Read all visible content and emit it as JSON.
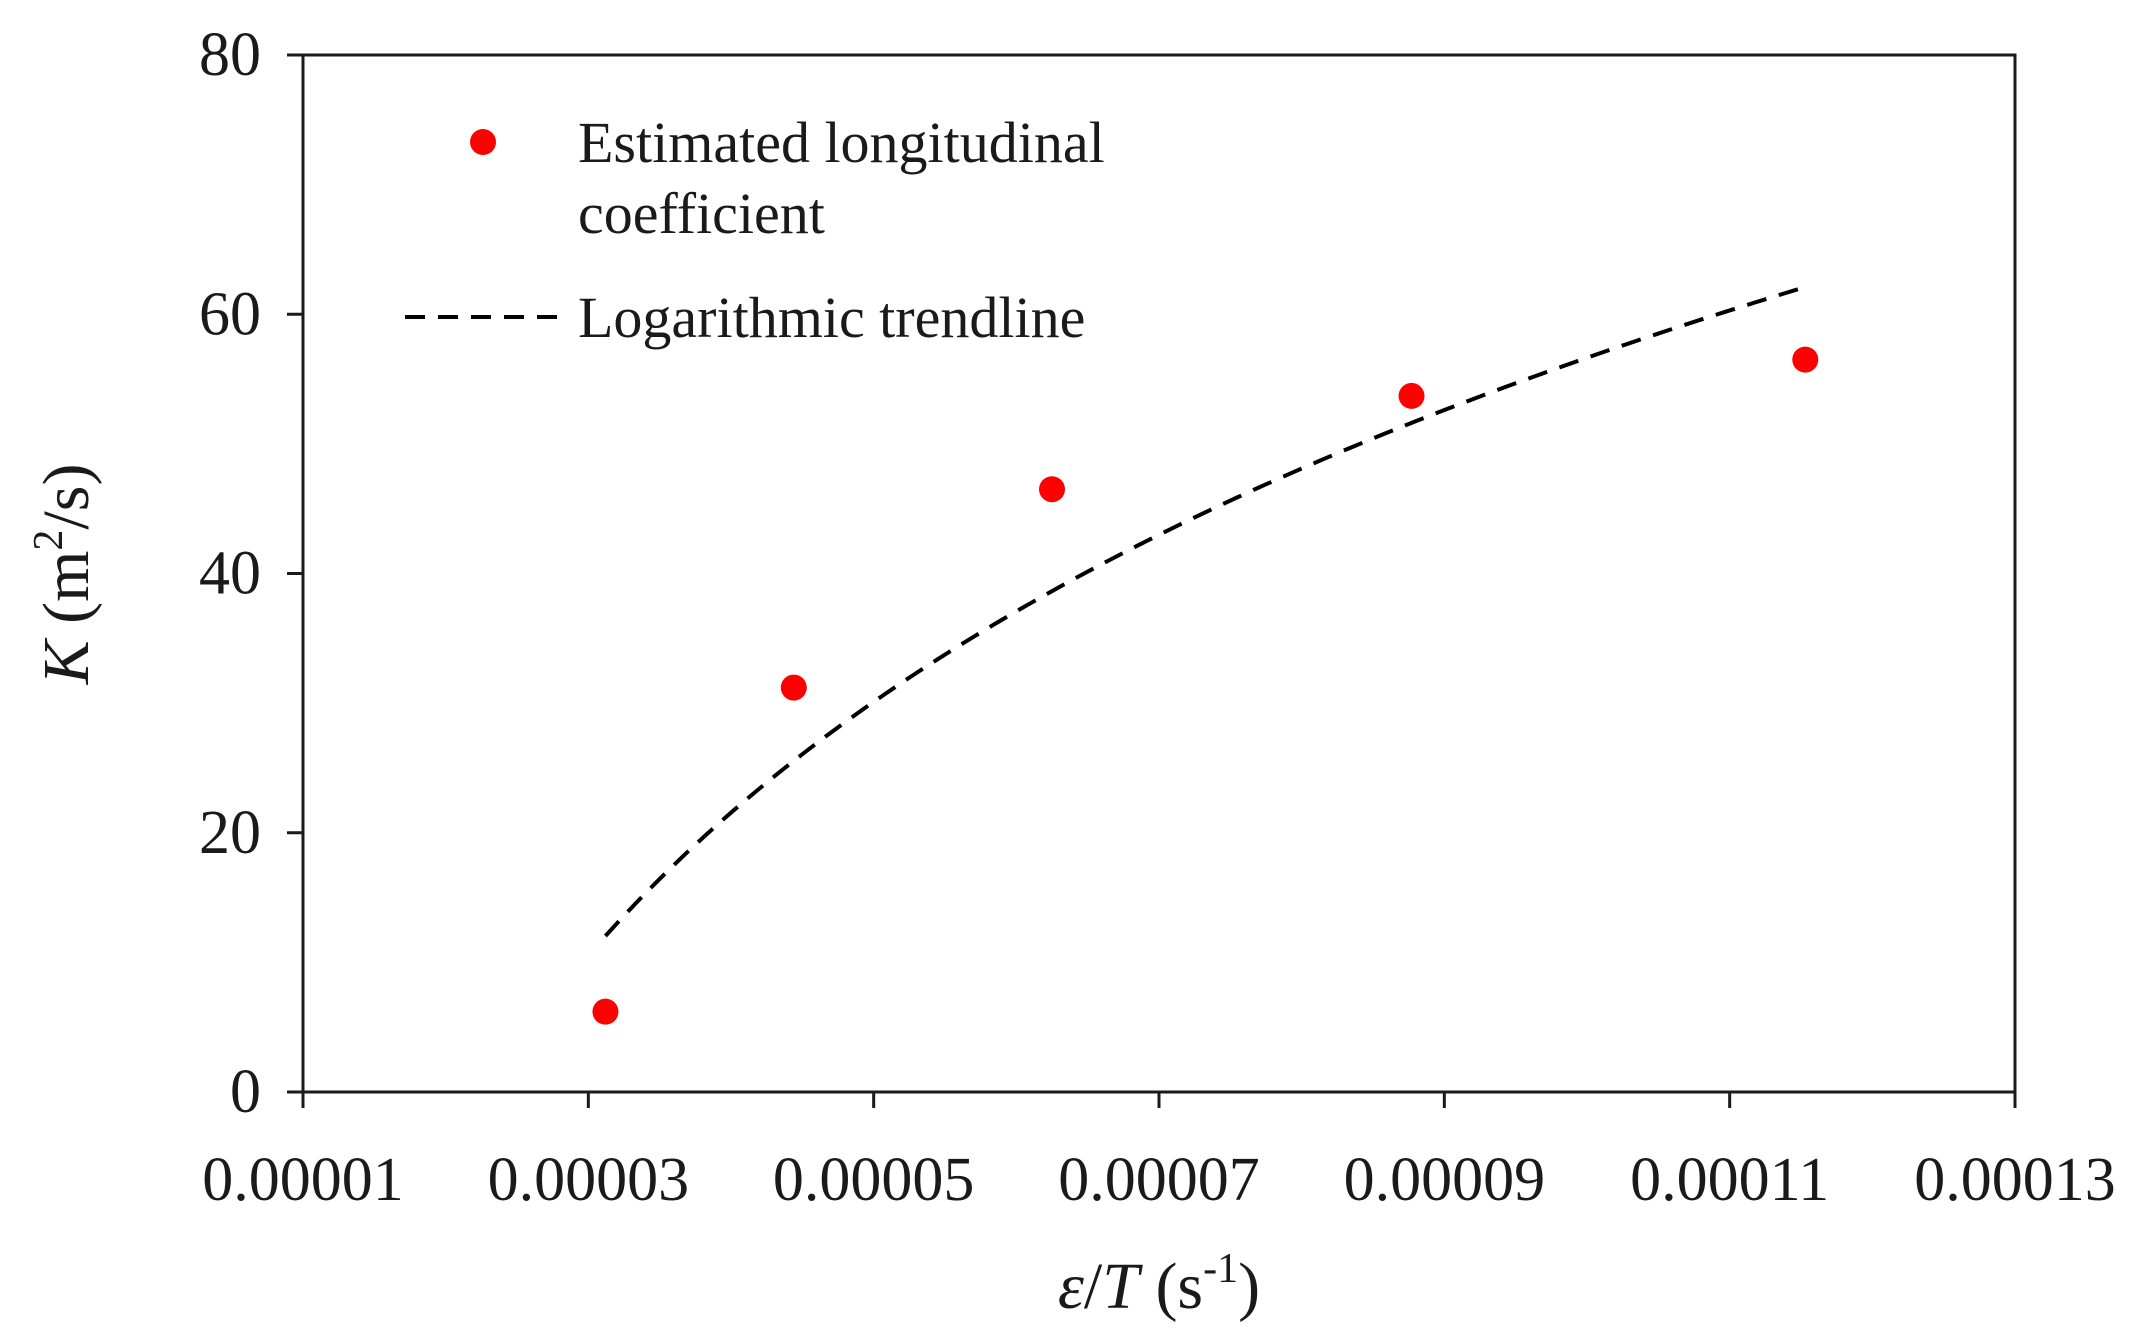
{
  "chart_data": {
    "type": "scatter",
    "title": "",
    "xlabel": {
      "main": "ε/T",
      "var1": "ε",
      "slash": "/",
      "var2": "T",
      "unit_prefix": " (s",
      "unit_sup": "-1",
      "unit_suffix": ")"
    },
    "ylabel": {
      "main": "K",
      "var": "K",
      "unit_prefix": " (m",
      "unit_sup": "2",
      "unit_suffix": "/s)"
    },
    "xlim": [
      1e-05,
      0.00013
    ],
    "ylim": [
      0,
      80
    ],
    "xticks": [
      1e-05,
      3e-05,
      5e-05,
      7e-05,
      9e-05,
      0.00011,
      0.00013
    ],
    "xtick_labels": [
      "0.00001",
      "0.00003",
      "0.00005",
      "0.00007",
      "0.00009",
      "0.00011",
      "0.00013"
    ],
    "yticks": [
      0,
      20,
      40,
      60,
      80
    ],
    "ytick_labels": [
      "0",
      "20",
      "40",
      "60",
      "80"
    ],
    "grid": false,
    "legend_position": "top-left",
    "series": [
      {
        "name": "Estimated longitudinal coefficient",
        "legend_lines": [
          "Estimated longitudinal",
          "coefficient"
        ],
        "kind": "scatter",
        "color": "#ff0000",
        "x": [
          3.12e-05,
          4.44e-05,
          6.25e-05,
          8.77e-05,
          0.0001153
        ],
        "y": [
          6.2,
          31.2,
          46.5,
          53.7,
          56.5
        ]
      },
      {
        "name": "Logarithmic trendline",
        "legend_lines": [
          "Logarithmic trendline"
        ],
        "kind": "trendline",
        "style": "dashed",
        "color": "#000000",
        "x_range": [
          3.12e-05,
          0.0001153
        ],
        "equation": {
          "type": "logarithmic",
          "a": 38.3,
          "b": 409.4
        }
      }
    ]
  }
}
